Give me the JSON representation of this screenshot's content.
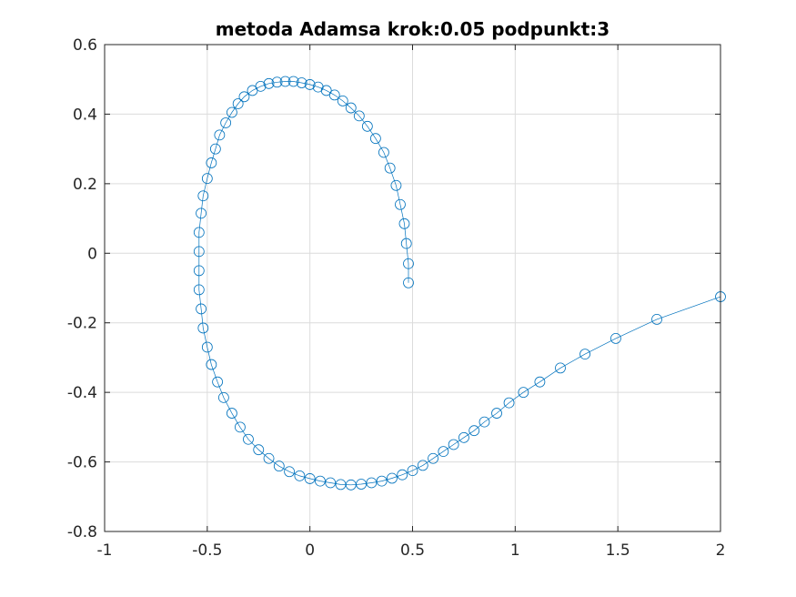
{
  "chart_data": {
    "type": "line",
    "title": "metoda Adamsa krok:0.05 podpunkt:3",
    "xlabel": "",
    "ylabel": "",
    "xlim": [
      -1,
      2
    ],
    "ylim": [
      -0.8,
      0.6
    ],
    "xticks": [
      -1,
      -0.5,
      0,
      0.5,
      1,
      1.5,
      2
    ],
    "yticks": [
      -0.8,
      -0.6,
      -0.4,
      -0.2,
      0,
      0.2,
      0.4,
      0.6
    ],
    "xtick_labels": [
      "-1",
      "-0.5",
      "0",
      "0.5",
      "1",
      "1.5",
      "2"
    ],
    "ytick_labels": [
      "-0.8",
      "-0.6",
      "-0.4",
      "-0.2",
      "0",
      "0.2",
      "0.4",
      "0.6"
    ],
    "grid": true,
    "series_color": "#0072BD",
    "marker": "circle",
    "approximate": true,
    "series": [
      {
        "x": [
          2.0,
          1.69,
          1.49,
          1.34,
          1.22,
          1.12,
          1.04,
          0.97,
          0.91,
          0.85,
          0.8,
          0.75,
          0.7,
          0.65,
          0.6,
          0.55,
          0.5,
          0.45,
          0.4,
          0.35,
          0.3,
          0.25,
          0.2,
          0.15,
          0.1,
          0.05,
          0.0,
          -0.05,
          -0.1,
          -0.15,
          -0.2,
          -0.25,
          -0.3,
          -0.34,
          -0.38,
          -0.42,
          -0.45,
          -0.48,
          -0.5,
          -0.52,
          -0.53,
          -0.54,
          -0.54,
          -0.54,
          -0.54,
          -0.53,
          -0.52,
          -0.5,
          -0.48,
          -0.46,
          -0.44,
          -0.41,
          -0.38,
          -0.35,
          -0.32,
          -0.28,
          -0.24,
          -0.2,
          -0.16,
          -0.12,
          -0.08,
          -0.04,
          0.0,
          0.04,
          0.08,
          0.12,
          0.16,
          0.2,
          0.24,
          0.28,
          0.32,
          0.36,
          0.39,
          0.42,
          0.44,
          0.46,
          0.47,
          0.48,
          0.48
        ],
        "y": [
          -0.125,
          -0.19,
          -0.245,
          -0.29,
          -0.33,
          -0.37,
          -0.4,
          -0.43,
          -0.46,
          -0.485,
          -0.51,
          -0.53,
          -0.55,
          -0.57,
          -0.59,
          -0.61,
          -0.625,
          -0.637,
          -0.647,
          -0.655,
          -0.66,
          -0.664,
          -0.666,
          -0.665,
          -0.66,
          -0.655,
          -0.648,
          -0.64,
          -0.628,
          -0.612,
          -0.59,
          -0.565,
          -0.535,
          -0.5,
          -0.46,
          -0.415,
          -0.37,
          -0.32,
          -0.27,
          -0.215,
          -0.16,
          -0.105,
          -0.05,
          0.005,
          0.06,
          0.115,
          0.165,
          0.215,
          0.26,
          0.3,
          0.34,
          0.375,
          0.405,
          0.43,
          0.45,
          0.468,
          0.48,
          0.488,
          0.492,
          0.494,
          0.494,
          0.49,
          0.485,
          0.478,
          0.468,
          0.455,
          0.438,
          0.418,
          0.395,
          0.365,
          0.33,
          0.29,
          0.245,
          0.195,
          0.14,
          0.085,
          0.028,
          -0.03,
          -0.085
        ]
      }
    ]
  }
}
